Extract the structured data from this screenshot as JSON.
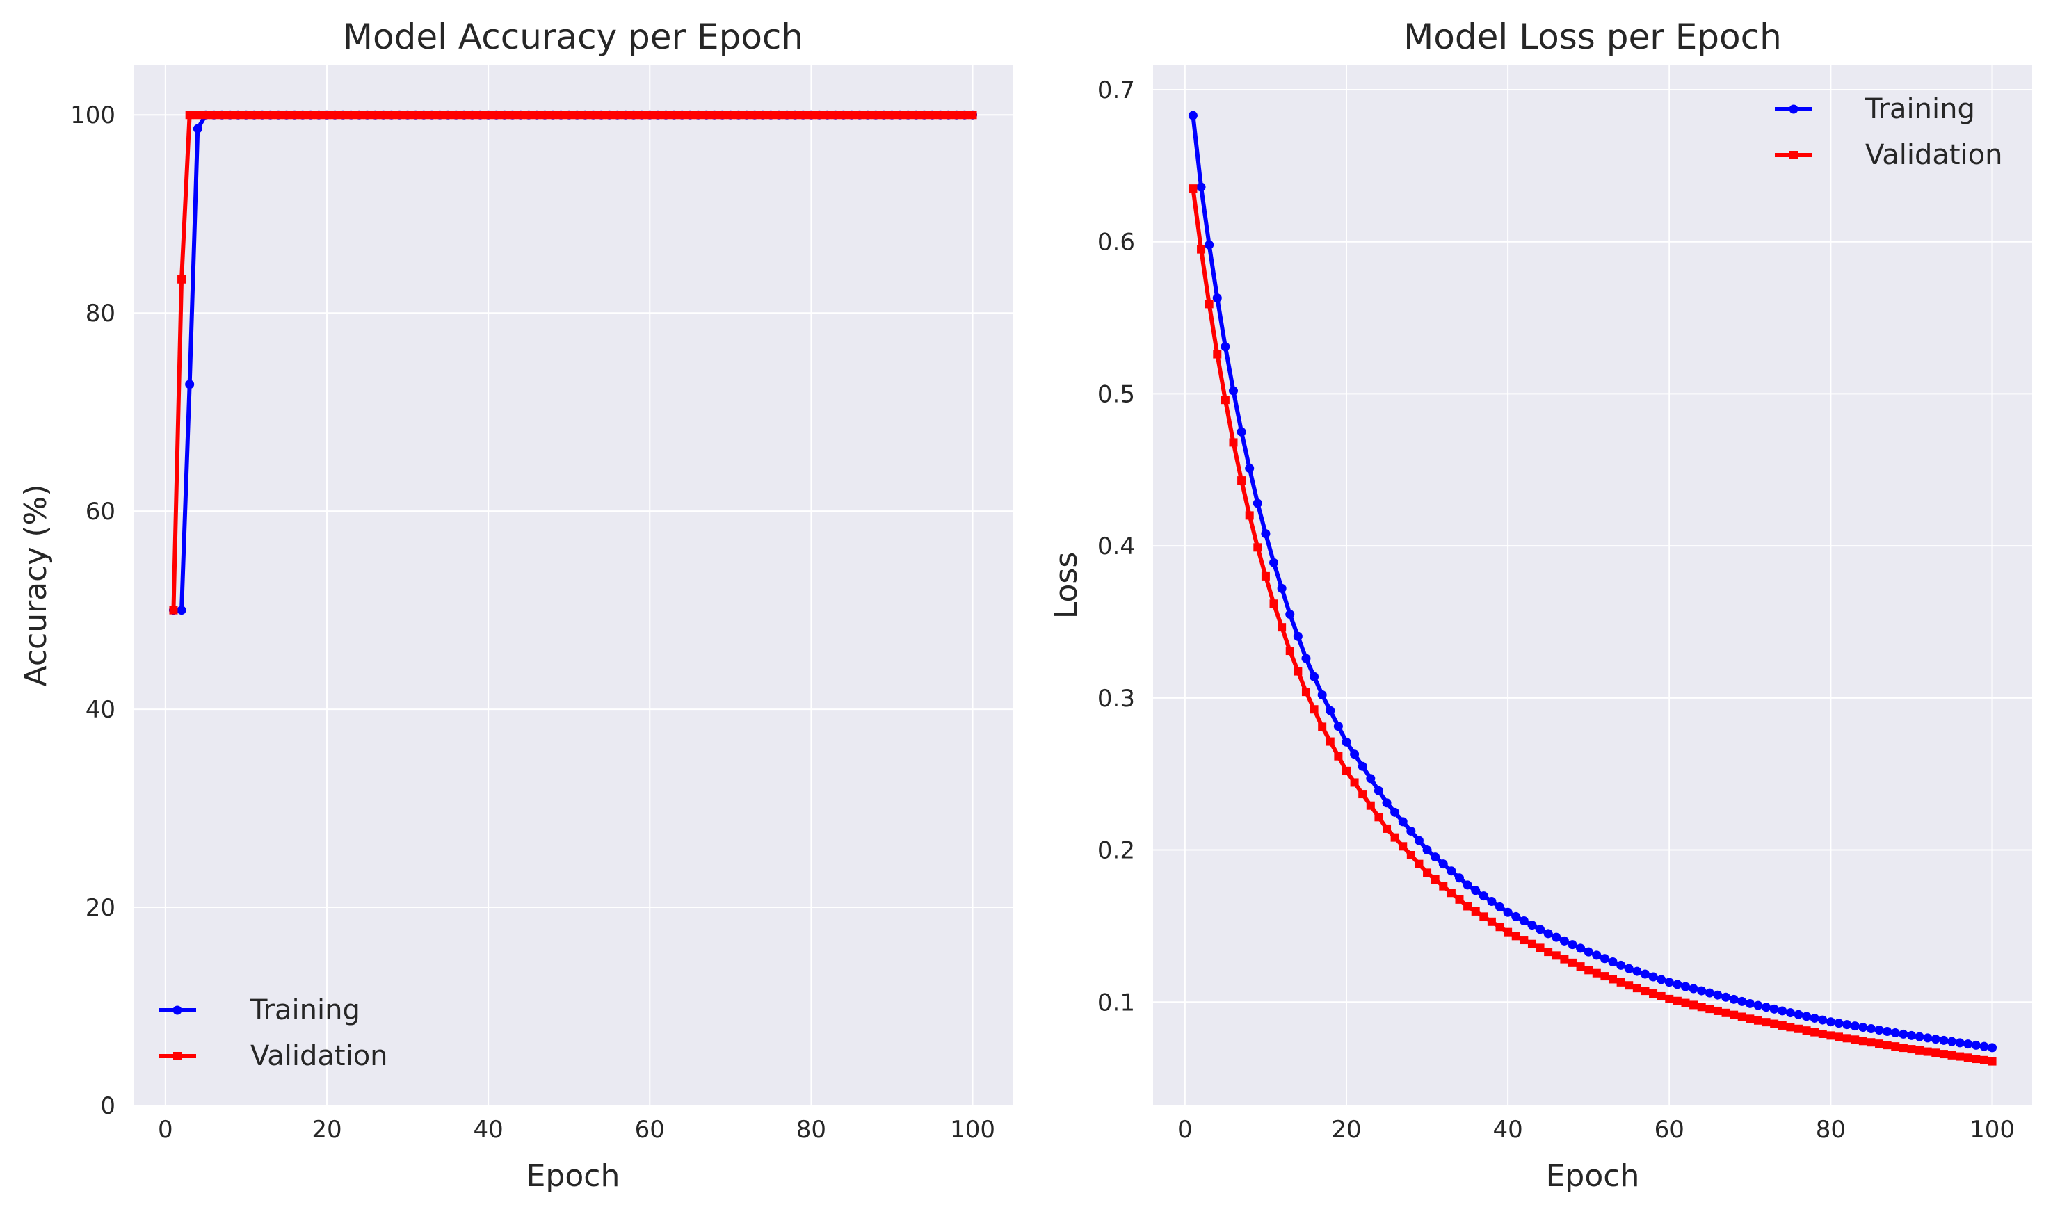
{
  "chart_data": [
    {
      "type": "line",
      "title": "Model Accuracy per Epoch",
      "xlabel": "Epoch",
      "ylabel": "Accuracy (%)",
      "xlim": [
        -3.95,
        104.95
      ],
      "ylim": [
        0,
        105
      ],
      "xticks": [
        0,
        20,
        40,
        60,
        80,
        100
      ],
      "yticks": [
        0,
        20,
        40,
        60,
        80,
        100
      ],
      "grid": true,
      "legend": "bottom-left",
      "epoch_range": [
        1,
        100
      ],
      "series": [
        {
          "name": "Training",
          "color": "#0000ff",
          "marker": "circle",
          "values_head": [
            50,
            50,
            72.8,
            98.6,
            100
          ],
          "fill_value": 100
        },
        {
          "name": "Validation",
          "color": "#ff0000",
          "marker": "square",
          "values_head": [
            50,
            83.4,
            100
          ],
          "fill_value": 100
        }
      ]
    },
    {
      "type": "line",
      "title": "Model Loss per Epoch",
      "xlabel": "Epoch",
      "ylabel": "Loss",
      "xlim": [
        -3.95,
        104.95
      ],
      "ylim": [
        0.032,
        0.716
      ],
      "xticks": [
        0,
        20,
        40,
        60,
        80,
        100
      ],
      "yticks": [
        0.1,
        0.2,
        0.3,
        0.4,
        0.5,
        0.6,
        0.7
      ],
      "grid": true,
      "legend": "top-right",
      "epoch_range": [
        1,
        100
      ],
      "series": [
        {
          "name": "Training",
          "color": "#0000ff",
          "marker": "circle",
          "anchors": [
            [
              1,
              0.683
            ],
            [
              2,
              0.636
            ],
            [
              3,
              0.598
            ],
            [
              4,
              0.563
            ],
            [
              5,
              0.531
            ],
            [
              6,
              0.502
            ],
            [
              7,
              0.475
            ],
            [
              8,
              0.451
            ],
            [
              9,
              0.428
            ],
            [
              10,
              0.408
            ],
            [
              11,
              0.389
            ],
            [
              13,
              0.355
            ],
            [
              15,
              0.326
            ],
            [
              17,
              0.302
            ],
            [
              20,
              0.271
            ],
            [
              25,
              0.231
            ],
            [
              30,
              0.2
            ],
            [
              35,
              0.177
            ],
            [
              40,
              0.159
            ],
            [
              45,
              0.145
            ],
            [
              50,
              0.133
            ],
            [
              55,
              0.122
            ],
            [
              60,
              0.113
            ],
            [
              70,
              0.099
            ],
            [
              80,
              0.087
            ],
            [
              90,
              0.078
            ],
            [
              100,
              0.07
            ]
          ]
        },
        {
          "name": "Validation",
          "color": "#ff0000",
          "marker": "square",
          "anchors": [
            [
              1,
              0.635
            ],
            [
              2,
              0.595
            ],
            [
              3,
              0.559
            ],
            [
              4,
              0.526
            ],
            [
              5,
              0.496
            ],
            [
              6,
              0.468
            ],
            [
              7,
              0.443
            ],
            [
              8,
              0.42
            ],
            [
              9,
              0.399
            ],
            [
              10,
              0.38
            ],
            [
              11,
              0.362
            ],
            [
              13,
              0.331
            ],
            [
              15,
              0.304
            ],
            [
              17,
              0.281
            ],
            [
              20,
              0.252
            ],
            [
              25,
              0.214
            ],
            [
              30,
              0.185
            ],
            [
              35,
              0.163
            ],
            [
              40,
              0.146
            ],
            [
              45,
              0.133
            ],
            [
              50,
              0.121
            ],
            [
              55,
              0.111
            ],
            [
              60,
              0.102
            ],
            [
              70,
              0.089
            ],
            [
              80,
              0.078
            ],
            [
              90,
              0.069
            ],
            [
              100,
              0.061
            ]
          ]
        }
      ]
    }
  ]
}
